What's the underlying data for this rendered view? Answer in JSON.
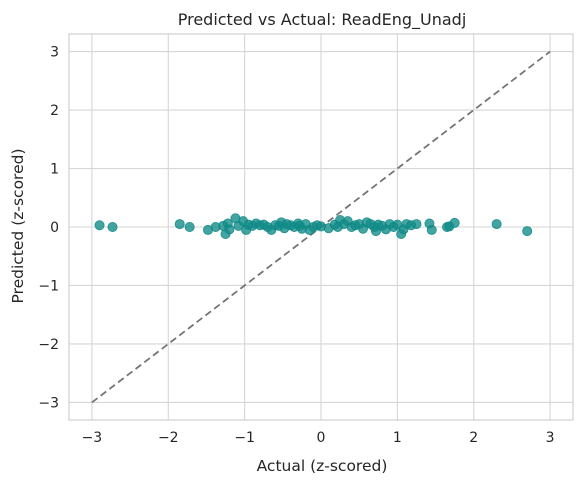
{
  "chart_data": {
    "type": "scatter",
    "title": "Predicted vs Actual: ReadEng_Unadj",
    "xlabel": "Actual (z-scored)",
    "ylabel": "Predicted (z-scored)",
    "xlim": [
      -3.3,
      3.3
    ],
    "ylim": [
      -3.3,
      3.3
    ],
    "xticks": [
      -3,
      -2,
      -1,
      0,
      1,
      2,
      3
    ],
    "yticks": [
      -3,
      -2,
      -1,
      0,
      1,
      2,
      3
    ],
    "xtick_labels": [
      "−3",
      "−2",
      "−1",
      "0",
      "1",
      "2",
      "3"
    ],
    "ytick_labels": [
      "−3",
      "−2",
      "−1",
      "0",
      "1",
      "2",
      "3"
    ],
    "grid": true,
    "point_color": "#0f8a87",
    "reference_line": {
      "x": [
        -3,
        3
      ],
      "y": [
        -3,
        3
      ],
      "color": "#757575",
      "style": "dashed"
    },
    "points": [
      [
        -2.9,
        0.03
      ],
      [
        -2.73,
        0.0
      ],
      [
        -1.85,
        0.05
      ],
      [
        -1.72,
        0.0
      ],
      [
        -1.48,
        -0.05
      ],
      [
        -1.38,
        0.0
      ],
      [
        -1.28,
        0.02
      ],
      [
        -1.25,
        -0.12
      ],
      [
        -1.22,
        0.06
      ],
      [
        -1.2,
        -0.04
      ],
      [
        -1.12,
        0.15
      ],
      [
        -1.08,
        0.02
      ],
      [
        -1.02,
        0.1
      ],
      [
        -0.98,
        -0.05
      ],
      [
        -0.95,
        0.04
      ],
      [
        -0.9,
        0.02
      ],
      [
        -0.85,
        0.06
      ],
      [
        -0.8,
        0.03
      ],
      [
        -0.75,
        0.04
      ],
      [
        -0.7,
        0.0
      ],
      [
        -0.65,
        -0.05
      ],
      [
        -0.6,
        0.03
      ],
      [
        -0.55,
        0.02
      ],
      [
        -0.52,
        0.08
      ],
      [
        -0.48,
        -0.02
      ],
      [
        -0.45,
        0.05
      ],
      [
        -0.4,
        0.03
      ],
      [
        -0.35,
        0.0
      ],
      [
        -0.3,
        0.06
      ],
      [
        -0.28,
        0.02
      ],
      [
        -0.25,
        -0.03
      ],
      [
        -0.2,
        0.05
      ],
      [
        -0.15,
        -0.05
      ],
      [
        -0.1,
        0.0
      ],
      [
        -0.05,
        0.03
      ],
      [
        0.0,
        0.01
      ],
      [
        0.1,
        -0.02
      ],
      [
        0.18,
        0.04
      ],
      [
        0.22,
        0.0
      ],
      [
        0.25,
        0.12
      ],
      [
        0.3,
        0.05
      ],
      [
        0.35,
        0.1
      ],
      [
        0.4,
        0.0
      ],
      [
        0.45,
        0.03
      ],
      [
        0.5,
        0.05
      ],
      [
        0.55,
        -0.03
      ],
      [
        0.6,
        0.08
      ],
      [
        0.65,
        0.05
      ],
      [
        0.7,
        0.0
      ],
      [
        0.72,
        -0.07
      ],
      [
        0.75,
        0.04
      ],
      [
        0.8,
        0.02
      ],
      [
        0.85,
        -0.04
      ],
      [
        0.9,
        0.05
      ],
      [
        0.95,
        0.0
      ],
      [
        1.0,
        0.04
      ],
      [
        1.05,
        -0.12
      ],
      [
        1.08,
        -0.04
      ],
      [
        1.12,
        0.05
      ],
      [
        1.18,
        0.03
      ],
      [
        1.25,
        0.05
      ],
      [
        1.42,
        0.06
      ],
      [
        1.45,
        -0.05
      ],
      [
        1.65,
        0.0
      ],
      [
        1.68,
        0.01
      ],
      [
        1.75,
        0.07
      ],
      [
        2.3,
        0.05
      ],
      [
        2.7,
        -0.07
      ]
    ]
  }
}
